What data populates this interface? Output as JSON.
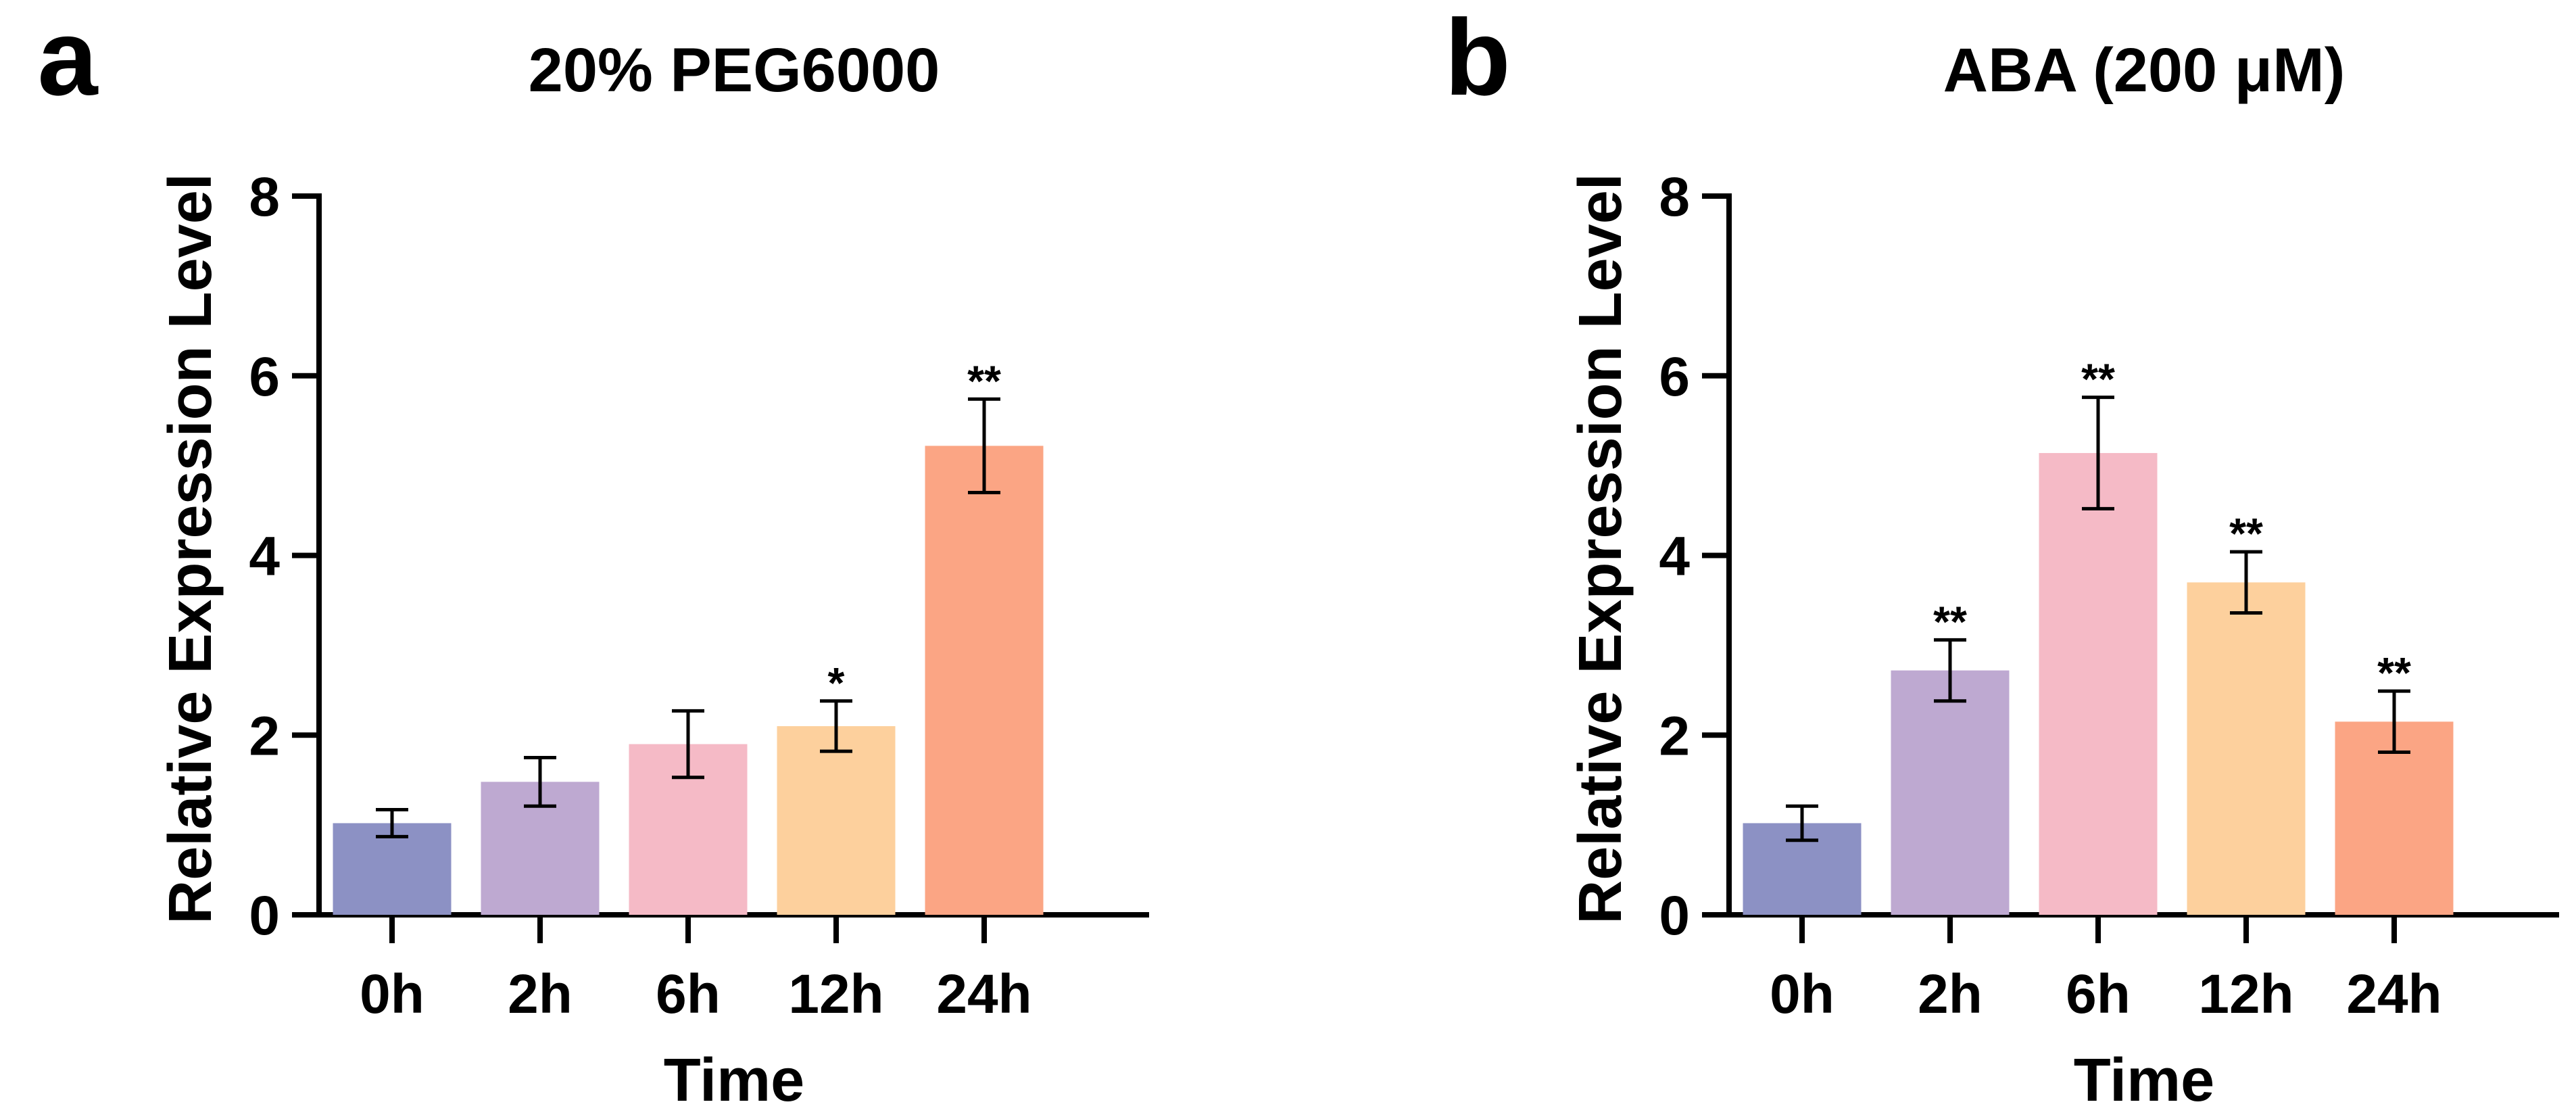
{
  "chart_data": [
    {
      "type": "bar",
      "panel_label": "a",
      "title": "20% PEG6000",
      "xlabel": "Time",
      "ylabel": "Relative Expression Level",
      "categories": [
        "0h",
        "2h",
        "6h",
        "12h",
        "24h"
      ],
      "values": [
        1.02,
        1.48,
        1.9,
        2.1,
        5.22
      ],
      "errors": [
        0.15,
        0.27,
        0.37,
        0.28,
        0.52
      ],
      "significance": [
        "",
        "",
        "",
        "*",
        "**"
      ],
      "colors": [
        "#8c91c4",
        "#bea9d1",
        "#f5bac6",
        "#fdd09d",
        "#fba584"
      ],
      "ylim": [
        0,
        8
      ],
      "yticks": [
        "0",
        "2",
        "4",
        "6",
        "8"
      ],
      "grid": false
    },
    {
      "type": "bar",
      "panel_label": "b",
      "title": "ABA (200 μM)",
      "xlabel": "Time",
      "ylabel": "Relative Expression Level",
      "categories": [
        "0h",
        "2h",
        "6h",
        "12h",
        "24h"
      ],
      "values": [
        1.02,
        2.72,
        5.14,
        3.7,
        2.15
      ],
      "errors": [
        0.19,
        0.34,
        0.62,
        0.34,
        0.34
      ],
      "significance": [
        "",
        "**",
        "**",
        "**",
        "**"
      ],
      "colors": [
        "#8c91c4",
        "#bea9d1",
        "#f5bac6",
        "#fdd09d",
        "#fba584"
      ],
      "ylim": [
        0,
        8
      ],
      "yticks": [
        "0",
        "2",
        "4",
        "6",
        "8"
      ],
      "grid": false
    }
  ]
}
